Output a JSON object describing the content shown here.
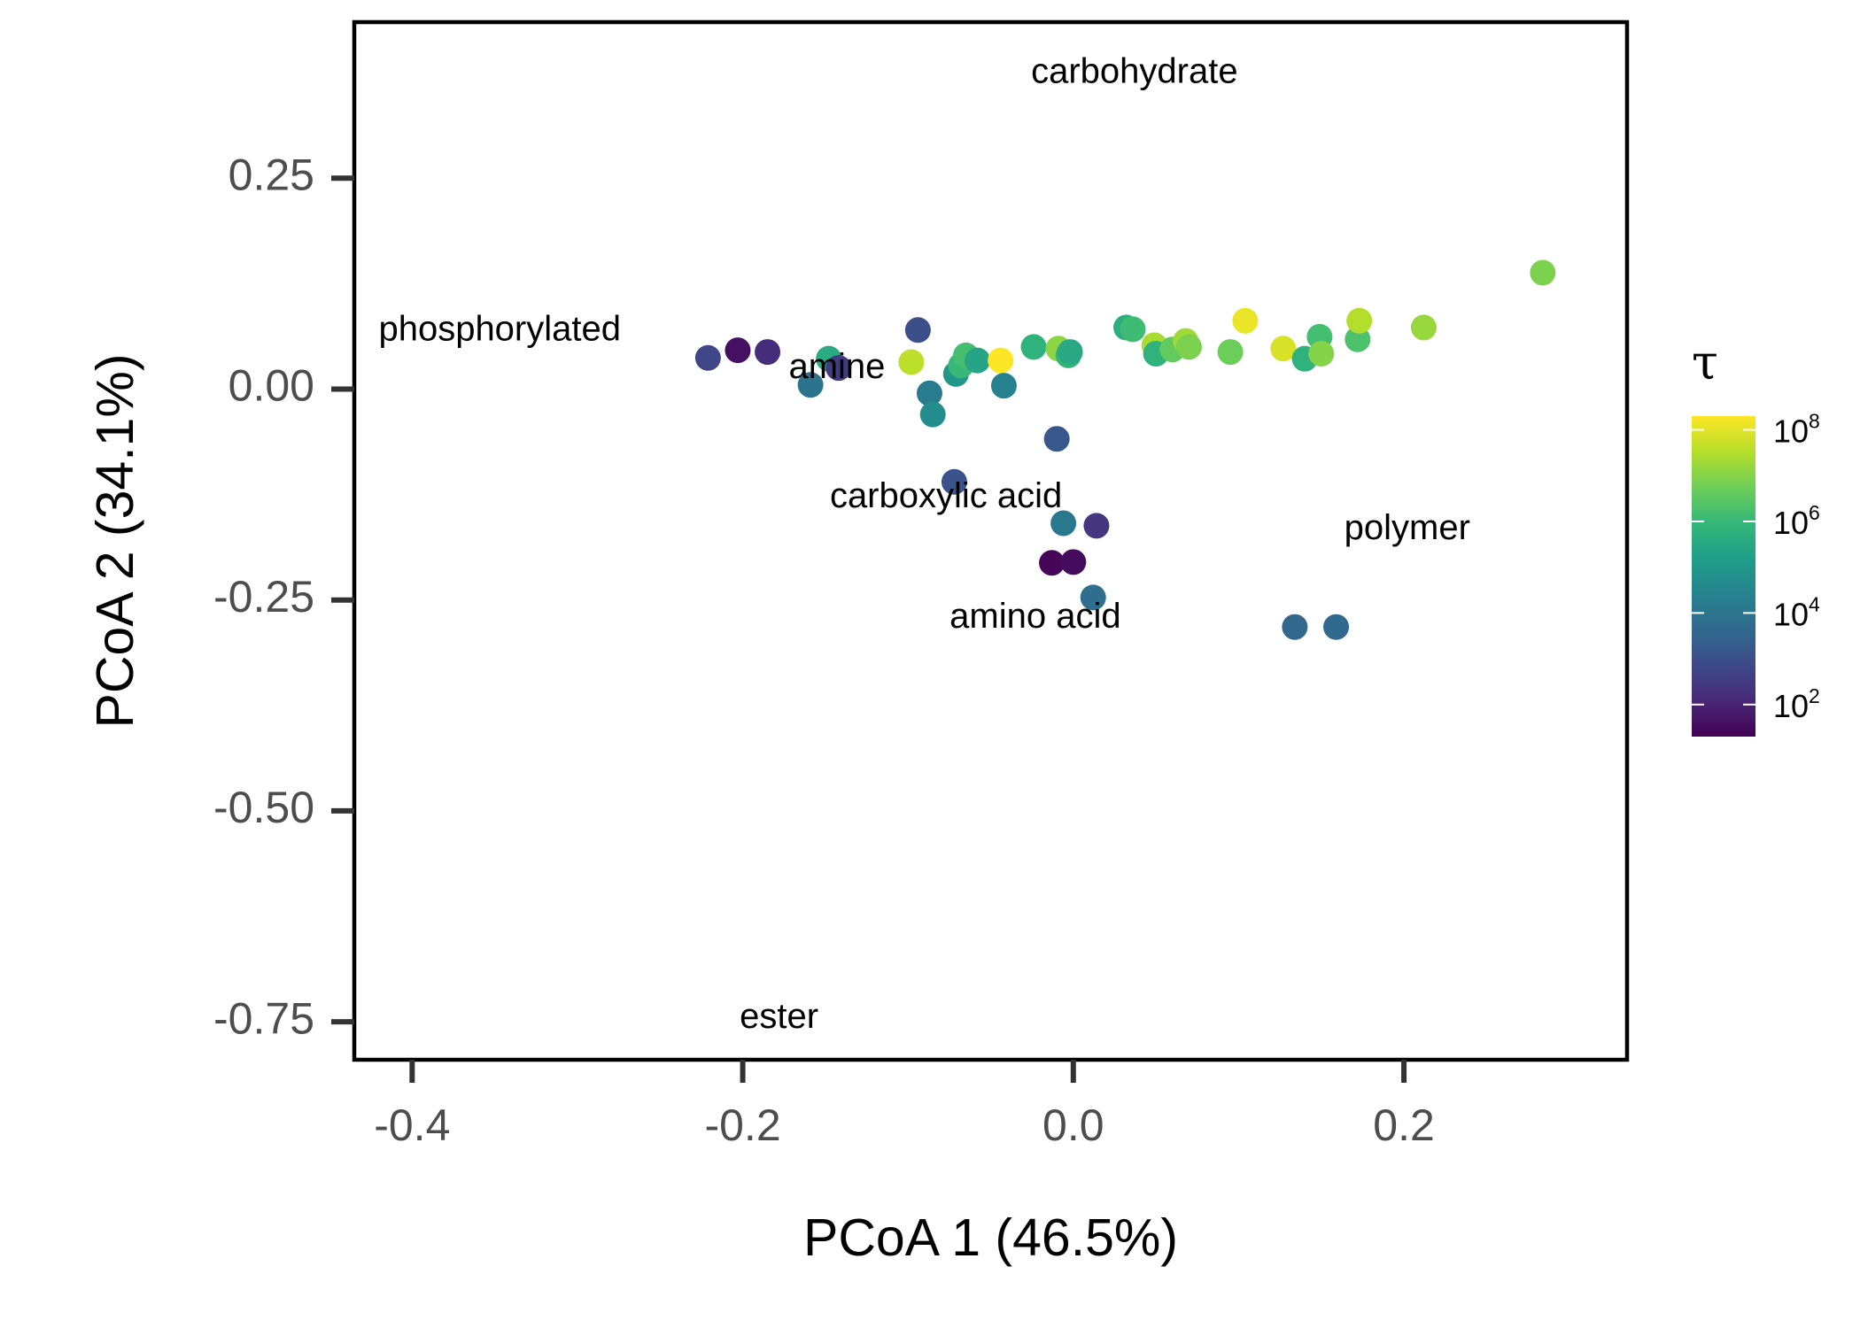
{
  "chart_data": {
    "type": "scatter",
    "title": "",
    "xlabel": "PCoA 1 (46.5%)",
    "ylabel": "PCoA 2 (34.1%)",
    "xlim": [
      -0.435,
      0.335
    ],
    "ylim": [
      -0.795,
      0.435
    ],
    "xticks": [
      -0.4,
      -0.2,
      0.0,
      0.2
    ],
    "xtick_labels": [
      "-0.4",
      "-0.2",
      "0.0",
      "0.2"
    ],
    "yticks": [
      0.25,
      0.0,
      -0.25,
      -0.5,
      -0.75
    ],
    "ytick_labels": [
      "0.25",
      "0.00",
      "-0.25",
      "-0.50",
      "-0.75"
    ],
    "grid": false,
    "legend": {
      "title": "τ",
      "placement": "right",
      "scale": "log10",
      "range": [
        1.3,
        8.3
      ],
      "ticks": [
        {
          "exponent": 2,
          "base": "10",
          "sup": "2"
        },
        {
          "exponent": 4,
          "base": "10",
          "sup": "4"
        },
        {
          "exponent": 6,
          "base": "10",
          "sup": "6"
        },
        {
          "exponent": 8,
          "base": "10",
          "sup": "8"
        }
      ],
      "palette": [
        "#440154",
        "#482878",
        "#3e4989",
        "#31688e",
        "#26828e",
        "#1f9e89",
        "#35b779",
        "#6ece58",
        "#b5de2b",
        "#fde725"
      ]
    },
    "annotations": [
      {
        "text": "carbohydrate",
        "x": 0.037,
        "y": 0.374
      },
      {
        "text": "phosphorylated",
        "x": -0.347,
        "y": 0.069
      },
      {
        "text": "amine",
        "x": -0.143,
        "y": 0.024
      },
      {
        "text": "carboxylic acid",
        "x": -0.077,
        "y": -0.129
      },
      {
        "text": "polymer",
        "x": 0.202,
        "y": -0.167
      },
      {
        "text": "amino acid",
        "x": -0.023,
        "y": -0.272
      },
      {
        "text": "ester",
        "x": -0.178,
        "y": -0.746
      }
    ],
    "points": [
      {
        "x": -0.221,
        "y": 0.037,
        "logtau": 2.8
      },
      {
        "x": -0.203,
        "y": 0.046,
        "logtau": 1.6
      },
      {
        "x": -0.185,
        "y": 0.044,
        "logtau": 2.2
      },
      {
        "x": -0.159,
        "y": 0.005,
        "logtau": 4.0
      },
      {
        "x": -0.148,
        "y": 0.036,
        "logtau": 5.6
      },
      {
        "x": -0.142,
        "y": 0.025,
        "logtau": 2.5
      },
      {
        "x": -0.098,
        "y": 0.032,
        "logtau": 7.6
      },
      {
        "x": -0.094,
        "y": 0.07,
        "logtau": 3.0
      },
      {
        "x": -0.087,
        "y": -0.005,
        "logtau": 4.2
      },
      {
        "x": -0.085,
        "y": -0.03,
        "logtau": 4.7
      },
      {
        "x": -0.072,
        "y": -0.11,
        "logtau": 3.1
      },
      {
        "x": -0.071,
        "y": 0.018,
        "logtau": 5.0
      },
      {
        "x": -0.068,
        "y": 0.028,
        "logtau": 6.0
      },
      {
        "x": -0.065,
        "y": 0.04,
        "logtau": 6.2
      },
      {
        "x": -0.058,
        "y": 0.034,
        "logtau": 5.4
      },
      {
        "x": -0.044,
        "y": 0.034,
        "logtau": 8.3
      },
      {
        "x": -0.042,
        "y": 0.004,
        "logtau": 4.4
      },
      {
        "x": -0.024,
        "y": 0.05,
        "logtau": 5.8
      },
      {
        "x": -0.013,
        "y": -0.206,
        "logtau": 1.4
      },
      {
        "x": -0.01,
        "y": -0.059,
        "logtau": 3.2
      },
      {
        "x": -0.009,
        "y": 0.048,
        "logtau": 7.1
      },
      {
        "x": -0.006,
        "y": -0.159,
        "logtau": 4.1
      },
      {
        "x": -0.003,
        "y": 0.04,
        "logtau": 5.9
      },
      {
        "x": -0.002,
        "y": 0.044,
        "logtau": 5.5
      },
      {
        "x": 0.0,
        "y": -0.205,
        "logtau": 1.5
      },
      {
        "x": 0.012,
        "y": -0.247,
        "logtau": 3.8
      },
      {
        "x": 0.014,
        "y": -0.162,
        "logtau": 2.4
      },
      {
        "x": 0.032,
        "y": 0.073,
        "logtau": 5.7
      },
      {
        "x": 0.036,
        "y": 0.071,
        "logtau": 6.1
      },
      {
        "x": 0.049,
        "y": 0.052,
        "logtau": 7.4
      },
      {
        "x": 0.05,
        "y": 0.042,
        "logtau": 5.8
      },
      {
        "x": 0.06,
        "y": 0.047,
        "logtau": 6.6
      },
      {
        "x": 0.068,
        "y": 0.057,
        "logtau": 7.3
      },
      {
        "x": 0.07,
        "y": 0.05,
        "logtau": 6.9
      },
      {
        "x": 0.095,
        "y": 0.044,
        "logtau": 6.7
      },
      {
        "x": 0.104,
        "y": 0.081,
        "logtau": 8.1
      },
      {
        "x": 0.127,
        "y": 0.048,
        "logtau": 7.9
      },
      {
        "x": 0.134,
        "y": -0.282,
        "logtau": 3.6
      },
      {
        "x": 0.14,
        "y": 0.036,
        "logtau": 5.8
      },
      {
        "x": 0.149,
        "y": 0.062,
        "logtau": 6.2
      },
      {
        "x": 0.15,
        "y": 0.042,
        "logtau": 7.0
      },
      {
        "x": 0.159,
        "y": -0.282,
        "logtau": 3.7
      },
      {
        "x": 0.172,
        "y": 0.059,
        "logtau": 6.3
      },
      {
        "x": 0.173,
        "y": 0.081,
        "logtau": 7.5
      },
      {
        "x": 0.212,
        "y": 0.073,
        "logtau": 7.2
      },
      {
        "x": 0.284,
        "y": 0.138,
        "logtau": 6.9
      }
    ]
  }
}
